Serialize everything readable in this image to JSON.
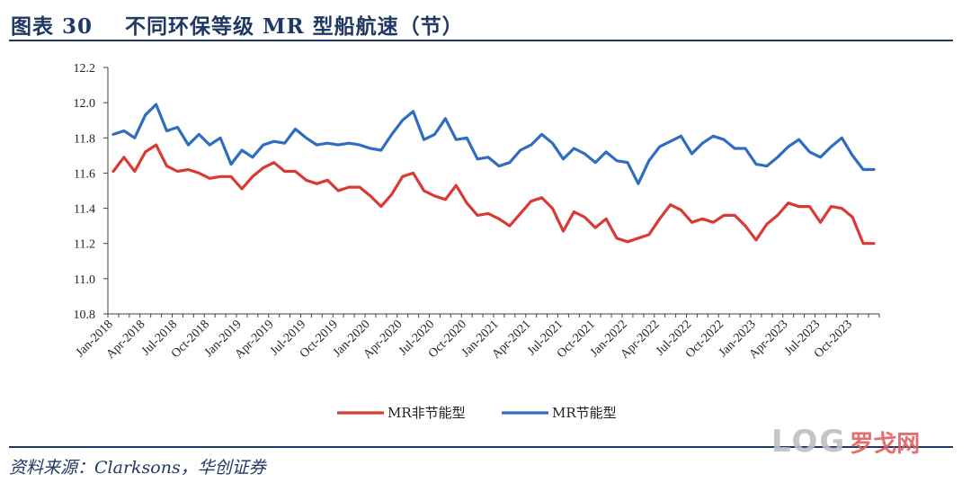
{
  "header": {
    "title": "图表 30    不同环保等级 MR 型船航速（节）"
  },
  "footer": {
    "source": "资料来源：Clarksons，华创证券"
  },
  "watermark": {
    "logo": "LOG",
    "brand": "罗戈网"
  },
  "colors": {
    "red_series": "#d93a35",
    "blue_series": "#2e6dbf",
    "title": "#1f3864"
  },
  "chart_data": {
    "type": "line",
    "title": "不同环保等级 MR 型船航速（节）",
    "xlabel": "",
    "ylabel": "",
    "ylim": [
      10.8,
      12.2
    ],
    "yticks": [
      "10.8",
      "11.0",
      "11.2",
      "11.4",
      "11.6",
      "11.8",
      "12.0",
      "12.2"
    ],
    "x_tick_labels": [
      "Jan-2018",
      "Apr-2018",
      "Jul-2018",
      "Oct-2018",
      "Jan-2019",
      "Apr-2019",
      "Jul-2019",
      "Oct-2019",
      "Jan-2020",
      "Apr-2020",
      "Jul-2020",
      "Oct-2020",
      "Jan-2021",
      "Apr-2021",
      "Jul-2021",
      "Oct-2021",
      "Jan-2022",
      "Apr-2022",
      "Jul-2022",
      "Oct-2022",
      "Jan-2023",
      "Apr-2023",
      "Jul-2023",
      "Oct-2023"
    ],
    "points_per_series": 72,
    "legend_position": "bottom",
    "series": [
      {
        "name": "MR非节能型",
        "color": "#d93a35",
        "values": [
          11.61,
          11.69,
          11.61,
          11.72,
          11.76,
          11.64,
          11.61,
          11.62,
          11.6,
          11.57,
          11.58,
          11.58,
          11.51,
          11.58,
          11.63,
          11.66,
          11.61,
          11.61,
          11.56,
          11.54,
          11.56,
          11.5,
          11.52,
          11.52,
          11.47,
          11.41,
          11.48,
          11.58,
          11.6,
          11.5,
          11.47,
          11.45,
          11.53,
          11.43,
          11.36,
          11.37,
          11.34,
          11.3,
          11.37,
          11.44,
          11.46,
          11.4,
          11.27,
          11.38,
          11.35,
          11.29,
          11.34,
          11.23,
          11.21,
          11.23,
          11.25,
          11.34,
          11.42,
          11.39,
          11.32,
          11.34,
          11.32,
          11.36,
          11.36,
          11.3,
          11.22,
          11.31,
          11.36,
          11.43,
          11.41,
          11.41,
          11.32,
          11.41,
          11.4,
          11.35,
          11.2,
          11.2
        ]
      },
      {
        "name": "MR节能型",
        "color": "#2e6dbf",
        "values": [
          11.82,
          11.84,
          11.8,
          11.93,
          11.99,
          11.84,
          11.86,
          11.76,
          11.82,
          11.76,
          11.8,
          11.65,
          11.73,
          11.69,
          11.76,
          11.78,
          11.77,
          11.85,
          11.8,
          11.76,
          11.77,
          11.76,
          11.77,
          11.76,
          11.74,
          11.73,
          11.82,
          11.9,
          11.95,
          11.79,
          11.82,
          11.91,
          11.79,
          11.8,
          11.68,
          11.69,
          11.64,
          11.66,
          11.73,
          11.76,
          11.82,
          11.77,
          11.68,
          11.74,
          11.71,
          11.66,
          11.72,
          11.67,
          11.66,
          11.54,
          11.67,
          11.75,
          11.78,
          11.81,
          11.71,
          11.77,
          11.81,
          11.79,
          11.74,
          11.74,
          11.65,
          11.64,
          11.69,
          11.75,
          11.79,
          11.72,
          11.69,
          11.75,
          11.8,
          11.7,
          11.62,
          11.62
        ]
      }
    ]
  }
}
